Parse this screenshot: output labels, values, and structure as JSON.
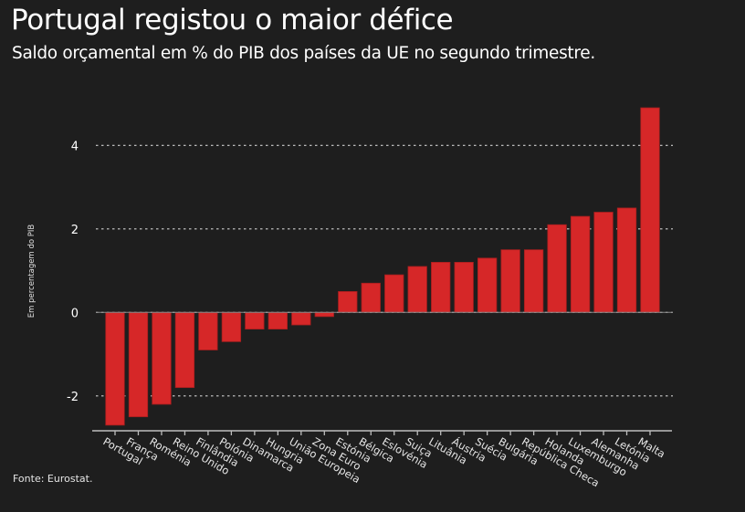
{
  "header": {
    "title": "Portugal registou o maior défice",
    "subtitle": "Saldo orçamental em % do PIB dos países da UE no segundo trimestre."
  },
  "footer": {
    "source": "Fonte: Eurostat."
  },
  "colors": {
    "background": "#1e1e1e",
    "bar": "#d62728",
    "bar_border": "#a61e1e",
    "grid": "#cfcfcf",
    "axis": "#bdbdbd"
  },
  "chart_data": {
    "type": "bar",
    "title": "Portugal registou o maior défice",
    "subtitle": "Saldo orçamental em % do PIB dos países da UE no segundo trimestre.",
    "xlabel": "",
    "ylabel": "Em percentagem do PIB",
    "ylim": [
      -2.8,
      5.0
    ],
    "yticks": [
      -2,
      0,
      2,
      4
    ],
    "ytick_labels": [
      "-2",
      "0",
      "2",
      "4"
    ],
    "grid": "horizontal-dotted",
    "legend": "none",
    "categories": [
      "Portugal",
      "França",
      "Roménia",
      "Reino Unido",
      "Finlândia",
      "Polónia",
      "Dinamarca",
      "Hungria",
      "União Europeia",
      "Zona Euro",
      "Estónia",
      "Bélgica",
      "Eslovénia",
      "Suiça",
      "Lituânia",
      "Áustria",
      "Suécia",
      "Bulgária",
      "República Checa",
      "Holanda",
      "Luxemburgo",
      "Alemanha",
      "Letónia",
      "Malta"
    ],
    "values": [
      -2.7,
      -2.5,
      -2.2,
      -1.8,
      -0.9,
      -0.7,
      -0.4,
      -0.4,
      -0.3,
      -0.1,
      0.5,
      0.7,
      0.9,
      1.1,
      1.2,
      1.2,
      1.3,
      1.5,
      1.5,
      2.1,
      2.3,
      2.4,
      2.5,
      4.9
    ],
    "source": "Fonte: Eurostat."
  }
}
